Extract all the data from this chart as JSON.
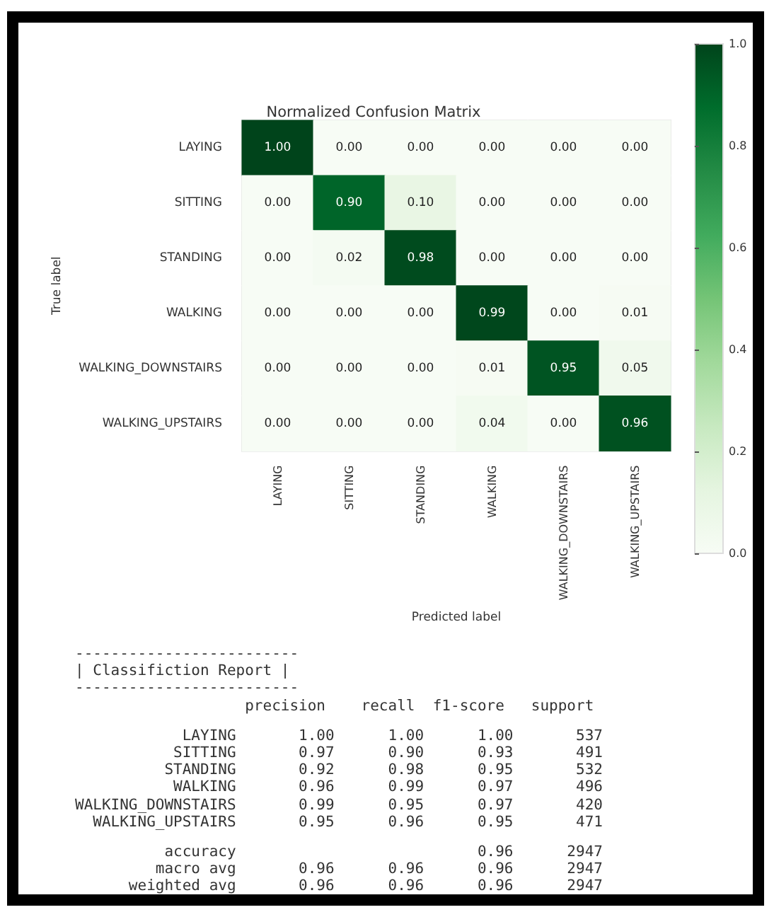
{
  "chart_data": [
    {
      "type": "heatmap",
      "title": "Normalized Confusion Matrix",
      "xlabel": "Predicted label",
      "ylabel": "True label",
      "categories": [
        "LAYING",
        "SITTING",
        "STANDING",
        "WALKING",
        "WALKING_DOWNSTAIRS",
        "WALKING_UPSTAIRS"
      ],
      "y_categories": [
        "LAYING",
        "SITTING",
        "STANDING",
        "WALKING",
        "WALKING_DOWNSTAIRS",
        "WALKING_UPSTAIRS"
      ],
      "cells": [
        [
          1.0,
          0.0,
          0.0,
          0.0,
          0.0,
          0.0
        ],
        [
          0.0,
          0.9,
          0.1,
          0.0,
          0.0,
          0.0
        ],
        [
          0.0,
          0.02,
          0.98,
          0.0,
          0.0,
          0.0
        ],
        [
          0.0,
          0.0,
          0.0,
          0.99,
          0.0,
          0.01
        ],
        [
          0.0,
          0.0,
          0.0,
          0.01,
          0.95,
          0.05
        ],
        [
          0.0,
          0.0,
          0.0,
          0.04,
          0.0,
          0.96
        ]
      ],
      "cell_labels": [
        [
          "1.00",
          "0.00",
          "0.00",
          "0.00",
          "0.00",
          "0.00"
        ],
        [
          "0.00",
          "0.90",
          "0.10",
          "0.00",
          "0.00",
          "0.00"
        ],
        [
          "0.00",
          "0.02",
          "0.98",
          "0.00",
          "0.00",
          "0.00"
        ],
        [
          "0.00",
          "0.00",
          "0.00",
          "0.99",
          "0.00",
          "0.01"
        ],
        [
          "0.00",
          "0.00",
          "0.00",
          "0.01",
          "0.95",
          "0.05"
        ],
        [
          "0.00",
          "0.00",
          "0.00",
          "0.04",
          "0.00",
          "0.96"
        ]
      ],
      "clim": [
        0,
        1
      ],
      "cticks": [
        {
          "value": 0,
          "label": "0.0"
        },
        0.2,
        0.4,
        0.6,
        0.8,
        {
          "value": 1,
          "label": "1.0"
        }
      ]
    },
    {
      "type": "other",
      "annotations": [
        "-------------------------",
        "| Classifiction Report |",
        "-------------------------",
        "                   precision    recall  f1-score   support",
        "            LAYING       1.00      1.00      1.00       537",
        "           SITTING       0.97      0.90      0.93       491",
        "          STANDING       0.92      0.98      0.95       532",
        "           WALKING       0.96      0.99      0.97       496",
        "WALKING_DOWNSTAIRS       0.99      0.95      0.97       420",
        "  WALKING_UPSTAIRS       0.95      0.96      0.95       471",
        "          accuracy                           0.96      2947",
        "         macro avg       0.96      0.96      0.96      2947",
        "      weighted avg       0.96      0.96      0.96      2947"
      ]
    }
  ]
}
